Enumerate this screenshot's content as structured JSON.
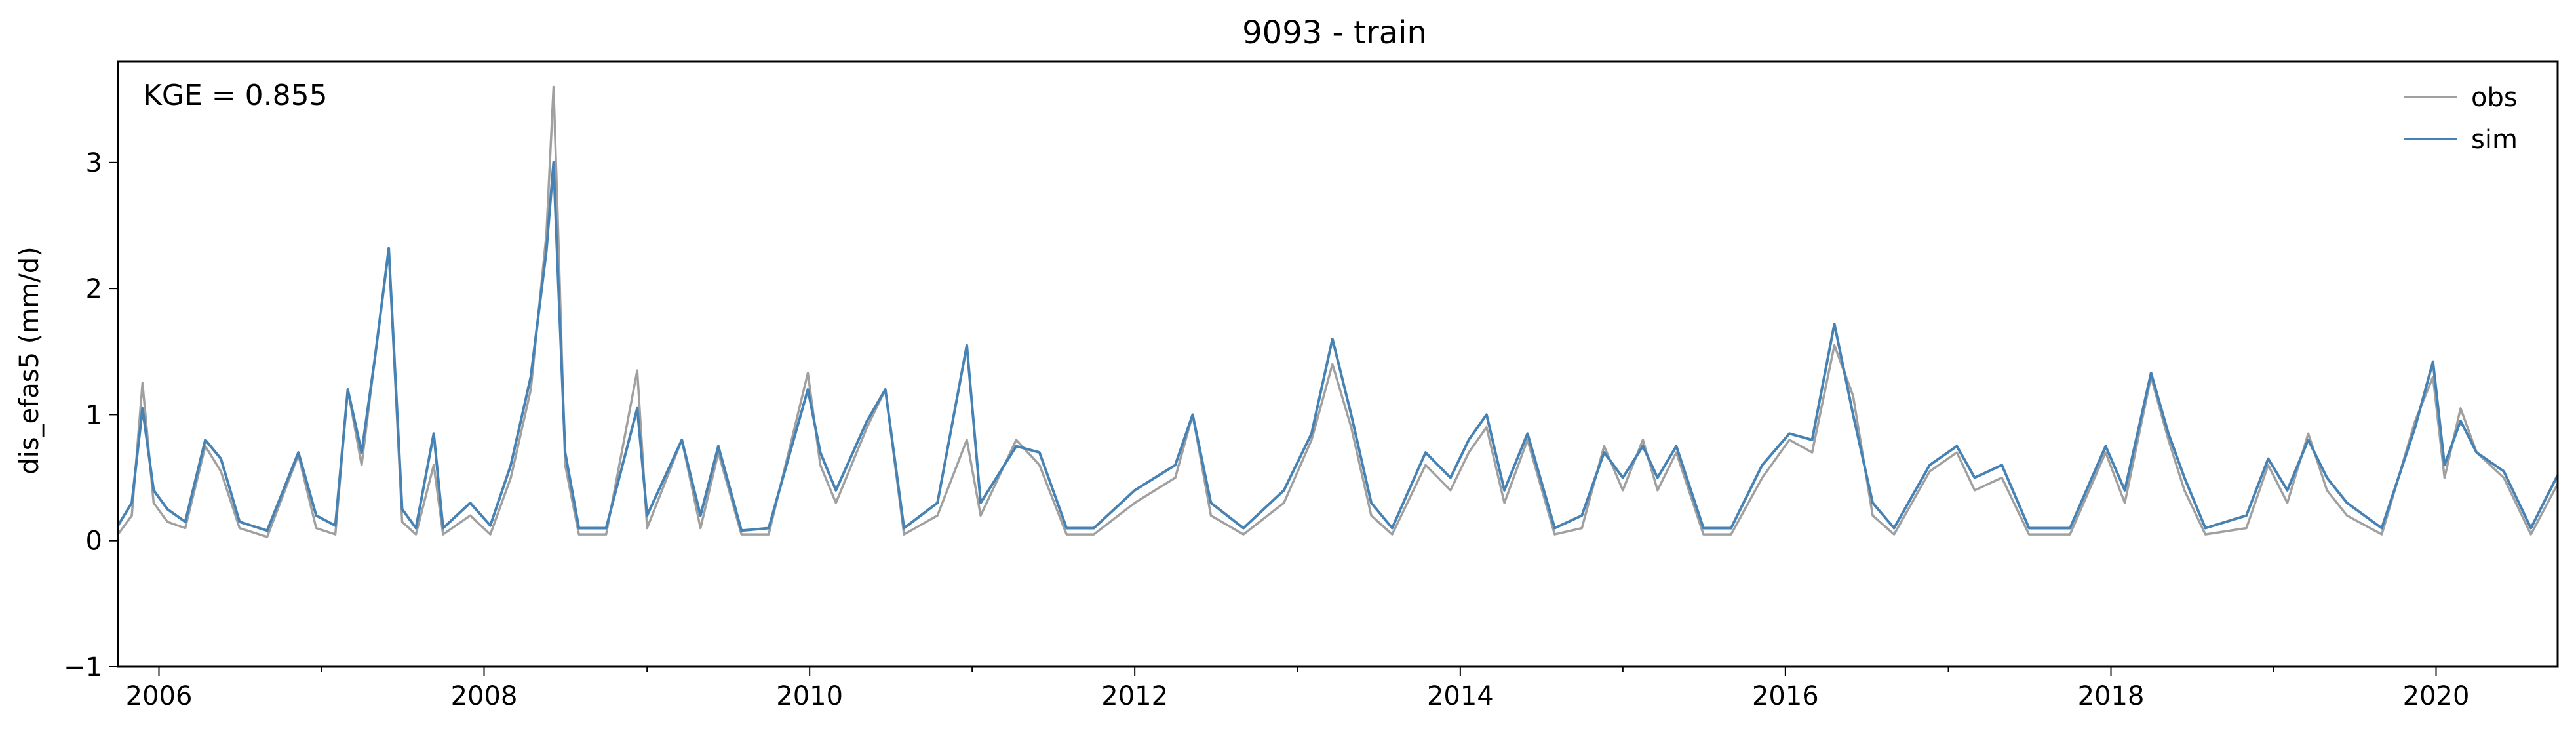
{
  "chart_data": {
    "type": "line",
    "title": "9093 - train",
    "xlabel": "",
    "ylabel": "dis_efas5 (mm/d)",
    "xlim": [
      "2005-10-01",
      "2020-09-30"
    ],
    "ylim": [
      -1,
      3.8
    ],
    "x_ticks": [
      "2006",
      "2008",
      "2010",
      "2012",
      "2014",
      "2016",
      "2018",
      "2020"
    ],
    "y_ticks": [
      -1,
      0,
      1,
      2,
      3
    ],
    "grid": false,
    "legend": {
      "position": "top-right",
      "entries": [
        "obs",
        "sim"
      ]
    },
    "annotation": "KGE = 0.855",
    "colors": {
      "obs": "#a0a0a0",
      "sim": "#4682b4"
    },
    "series": [
      {
        "name": "obs",
        "color": "#a0a0a0",
        "points": [
          [
            "2005-10-01",
            0.05
          ],
          [
            "2005-11-01",
            0.2
          ],
          [
            "2005-11-25",
            1.25
          ],
          [
            "2005-12-20",
            0.3
          ],
          [
            "2006-01-20",
            0.15
          ],
          [
            "2006-03-01",
            0.1
          ],
          [
            "2006-04-15",
            0.75
          ],
          [
            "2006-05-20",
            0.55
          ],
          [
            "2006-07-01",
            0.1
          ],
          [
            "2006-09-01",
            0.03
          ],
          [
            "2006-11-10",
            0.68
          ],
          [
            "2006-12-20",
            0.1
          ],
          [
            "2007-02-01",
            0.05
          ],
          [
            "2007-03-01",
            1.2
          ],
          [
            "2007-04-01",
            0.6
          ],
          [
            "2007-05-01",
            1.45
          ],
          [
            "2007-06-01",
            2.3
          ],
          [
            "2007-07-01",
            0.15
          ],
          [
            "2007-08-01",
            0.05
          ],
          [
            "2007-09-10",
            0.6
          ],
          [
            "2007-10-01",
            0.05
          ],
          [
            "2007-12-01",
            0.2
          ],
          [
            "2008-01-15",
            0.05
          ],
          [
            "2008-03-01",
            0.5
          ],
          [
            "2008-04-15",
            1.2
          ],
          [
            "2008-05-20",
            2.43
          ],
          [
            "2008-06-05",
            3.6
          ],
          [
            "2008-06-15",
            2.5
          ],
          [
            "2008-07-01",
            0.6
          ],
          [
            "2008-08-01",
            0.05
          ],
          [
            "2008-10-01",
            0.05
          ],
          [
            "2008-12-10",
            1.35
          ],
          [
            "2009-01-01",
            0.1
          ],
          [
            "2009-03-20",
            0.8
          ],
          [
            "2009-05-01",
            0.1
          ],
          [
            "2009-06-10",
            0.7
          ],
          [
            "2009-08-01",
            0.05
          ],
          [
            "2009-10-01",
            0.05
          ],
          [
            "2009-12-28",
            1.33
          ],
          [
            "2010-01-25",
            0.6
          ],
          [
            "2010-03-01",
            0.3
          ],
          [
            "2010-05-10",
            0.9
          ],
          [
            "2010-06-20",
            1.2
          ],
          [
            "2010-08-01",
            0.05
          ],
          [
            "2010-10-15",
            0.2
          ],
          [
            "2010-12-20",
            0.8
          ],
          [
            "2011-01-20",
            0.2
          ],
          [
            "2011-04-10",
            0.8
          ],
          [
            "2011-06-01",
            0.6
          ],
          [
            "2011-08-01",
            0.05
          ],
          [
            "2011-10-01",
            0.05
          ],
          [
            "2012-01-01",
            0.3
          ],
          [
            "2012-04-01",
            0.5
          ],
          [
            "2012-05-10",
            1.0
          ],
          [
            "2012-06-20",
            0.2
          ],
          [
            "2012-09-01",
            0.05
          ],
          [
            "2012-12-01",
            0.3
          ],
          [
            "2013-02-01",
            0.8
          ],
          [
            "2013-03-20",
            1.4
          ],
          [
            "2013-05-01",
            0.9
          ],
          [
            "2013-06-15",
            0.2
          ],
          [
            "2013-08-01",
            0.05
          ],
          [
            "2013-10-15",
            0.6
          ],
          [
            "2013-12-10",
            0.4
          ],
          [
            "2014-01-20",
            0.7
          ],
          [
            "2014-03-01",
            0.9
          ],
          [
            "2014-04-10",
            0.3
          ],
          [
            "2014-06-01",
            0.8
          ],
          [
            "2014-08-01",
            0.05
          ],
          [
            "2014-10-01",
            0.1
          ],
          [
            "2014-11-20",
            0.75
          ],
          [
            "2015-01-01",
            0.4
          ],
          [
            "2015-02-15",
            0.8
          ],
          [
            "2015-03-20",
            0.4
          ],
          [
            "2015-05-01",
            0.7
          ],
          [
            "2015-07-01",
            0.05
          ],
          [
            "2015-09-01",
            0.05
          ],
          [
            "2015-11-10",
            0.5
          ],
          [
            "2016-01-10",
            0.8
          ],
          [
            "2016-03-01",
            0.7
          ],
          [
            "2016-04-20",
            1.55
          ],
          [
            "2016-06-01",
            1.15
          ],
          [
            "2016-07-15",
            0.2
          ],
          [
            "2016-09-01",
            0.05
          ],
          [
            "2016-11-20",
            0.55
          ],
          [
            "2017-01-20",
            0.7
          ],
          [
            "2017-03-01",
            0.4
          ],
          [
            "2017-05-01",
            0.5
          ],
          [
            "2017-07-01",
            0.05
          ],
          [
            "2017-10-01",
            0.05
          ],
          [
            "2017-12-20",
            0.7
          ],
          [
            "2018-02-01",
            0.3
          ],
          [
            "2018-04-01",
            1.3
          ],
          [
            "2018-05-10",
            0.8
          ],
          [
            "2018-06-15",
            0.4
          ],
          [
            "2018-08-01",
            0.05
          ],
          [
            "2018-11-01",
            0.1
          ],
          [
            "2018-12-20",
            0.6
          ],
          [
            "2019-02-01",
            0.3
          ],
          [
            "2019-03-20",
            0.85
          ],
          [
            "2019-05-01",
            0.4
          ],
          [
            "2019-06-15",
            0.2
          ],
          [
            "2019-09-01",
            0.05
          ],
          [
            "2019-11-15",
            0.95
          ],
          [
            "2019-12-25",
            1.3
          ],
          [
            "2020-01-20",
            0.5
          ],
          [
            "2020-02-25",
            1.05
          ],
          [
            "2020-04-01",
            0.7
          ],
          [
            "2020-06-01",
            0.5
          ],
          [
            "2020-08-01",
            0.05
          ],
          [
            "2020-09-30",
            0.45
          ]
        ]
      },
      {
        "name": "sim",
        "color": "#4682b4",
        "points": [
          [
            "2005-10-01",
            0.12
          ],
          [
            "2005-11-01",
            0.3
          ],
          [
            "2005-11-25",
            1.05
          ],
          [
            "2005-12-20",
            0.4
          ],
          [
            "2006-01-20",
            0.25
          ],
          [
            "2006-03-01",
            0.15
          ],
          [
            "2006-04-15",
            0.8
          ],
          [
            "2006-05-20",
            0.65
          ],
          [
            "2006-07-01",
            0.15
          ],
          [
            "2006-09-01",
            0.08
          ],
          [
            "2006-11-10",
            0.7
          ],
          [
            "2006-12-20",
            0.2
          ],
          [
            "2007-02-01",
            0.12
          ],
          [
            "2007-03-01",
            1.2
          ],
          [
            "2007-04-01",
            0.7
          ],
          [
            "2007-05-01",
            1.45
          ],
          [
            "2007-06-01",
            2.32
          ],
          [
            "2007-07-01",
            0.25
          ],
          [
            "2007-08-01",
            0.1
          ],
          [
            "2007-09-10",
            0.85
          ],
          [
            "2007-10-01",
            0.1
          ],
          [
            "2007-12-01",
            0.3
          ],
          [
            "2008-01-15",
            0.12
          ],
          [
            "2008-03-01",
            0.6
          ],
          [
            "2008-04-15",
            1.3
          ],
          [
            "2008-05-20",
            2.3
          ],
          [
            "2008-06-05",
            3.0
          ],
          [
            "2008-06-15",
            2.1
          ],
          [
            "2008-07-01",
            0.7
          ],
          [
            "2008-08-01",
            0.1
          ],
          [
            "2008-10-01",
            0.1
          ],
          [
            "2008-12-10",
            1.05
          ],
          [
            "2009-01-01",
            0.2
          ],
          [
            "2009-03-20",
            0.8
          ],
          [
            "2009-05-01",
            0.2
          ],
          [
            "2009-06-10",
            0.75
          ],
          [
            "2009-08-01",
            0.08
          ],
          [
            "2009-10-01",
            0.1
          ],
          [
            "2009-12-28",
            1.2
          ],
          [
            "2010-01-25",
            0.7
          ],
          [
            "2010-03-01",
            0.4
          ],
          [
            "2010-05-10",
            0.95
          ],
          [
            "2010-06-20",
            1.2
          ],
          [
            "2010-08-01",
            0.1
          ],
          [
            "2010-10-15",
            0.3
          ],
          [
            "2010-12-20",
            1.55
          ],
          [
            "2011-01-20",
            0.3
          ],
          [
            "2011-04-10",
            0.75
          ],
          [
            "2011-06-01",
            0.7
          ],
          [
            "2011-08-01",
            0.1
          ],
          [
            "2011-10-01",
            0.1
          ],
          [
            "2012-01-01",
            0.4
          ],
          [
            "2012-04-01",
            0.6
          ],
          [
            "2012-05-10",
            1.0
          ],
          [
            "2012-06-20",
            0.3
          ],
          [
            "2012-09-01",
            0.1
          ],
          [
            "2012-12-01",
            0.4
          ],
          [
            "2013-02-01",
            0.85
          ],
          [
            "2013-03-20",
            1.6
          ],
          [
            "2013-05-01",
            1.0
          ],
          [
            "2013-06-15",
            0.3
          ],
          [
            "2013-08-01",
            0.1
          ],
          [
            "2013-10-15",
            0.7
          ],
          [
            "2013-12-10",
            0.5
          ],
          [
            "2014-01-20",
            0.8
          ],
          [
            "2014-03-01",
            1.0
          ],
          [
            "2014-04-10",
            0.4
          ],
          [
            "2014-06-01",
            0.85
          ],
          [
            "2014-08-01",
            0.1
          ],
          [
            "2014-10-01",
            0.2
          ],
          [
            "2014-11-20",
            0.7
          ],
          [
            "2015-01-01",
            0.5
          ],
          [
            "2015-02-15",
            0.75
          ],
          [
            "2015-03-20",
            0.5
          ],
          [
            "2015-05-01",
            0.75
          ],
          [
            "2015-07-01",
            0.1
          ],
          [
            "2015-09-01",
            0.1
          ],
          [
            "2015-11-10",
            0.6
          ],
          [
            "2016-01-10",
            0.85
          ],
          [
            "2016-03-01",
            0.8
          ],
          [
            "2016-04-20",
            1.72
          ],
          [
            "2016-06-01",
            1.0
          ],
          [
            "2016-07-15",
            0.3
          ],
          [
            "2016-09-01",
            0.1
          ],
          [
            "2016-11-20",
            0.6
          ],
          [
            "2017-01-20",
            0.75
          ],
          [
            "2017-03-01",
            0.5
          ],
          [
            "2017-05-01",
            0.6
          ],
          [
            "2017-07-01",
            0.1
          ],
          [
            "2017-10-01",
            0.1
          ],
          [
            "2017-12-20",
            0.75
          ],
          [
            "2018-02-01",
            0.4
          ],
          [
            "2018-04-01",
            1.33
          ],
          [
            "2018-05-10",
            0.85
          ],
          [
            "2018-06-15",
            0.5
          ],
          [
            "2018-08-01",
            0.1
          ],
          [
            "2018-11-01",
            0.2
          ],
          [
            "2018-12-20",
            0.65
          ],
          [
            "2019-02-01",
            0.4
          ],
          [
            "2019-03-20",
            0.8
          ],
          [
            "2019-05-01",
            0.5
          ],
          [
            "2019-06-15",
            0.3
          ],
          [
            "2019-09-01",
            0.1
          ],
          [
            "2019-11-15",
            0.9
          ],
          [
            "2019-12-25",
            1.42
          ],
          [
            "2020-01-20",
            0.6
          ],
          [
            "2020-02-25",
            0.95
          ],
          [
            "2020-04-01",
            0.7
          ],
          [
            "2020-06-01",
            0.55
          ],
          [
            "2020-08-01",
            0.1
          ],
          [
            "2020-09-30",
            0.52
          ]
        ]
      }
    ]
  }
}
